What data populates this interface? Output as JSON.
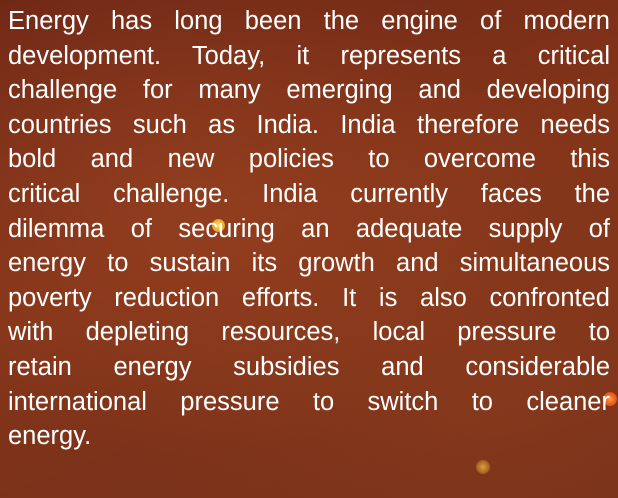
{
  "paragraph": {
    "lines": [
      "Energy has long been the engine of modern",
      "development. Today, it represents a critical",
      "challenge for many emerging and developing",
      "countries such as India. India therefore needs",
      "bold and new policies to overcome this",
      "critical challenge. India currently faces the",
      "dilemma of securing an adequate supply of",
      "energy to sustain its growth and simultaneous",
      "poverty reduction efforts. It is also confronted",
      "with depleting resources, local pressure to",
      "retain energy subsidies and considerable",
      "international pressure to switch to cleaner",
      "energy."
    ]
  }
}
